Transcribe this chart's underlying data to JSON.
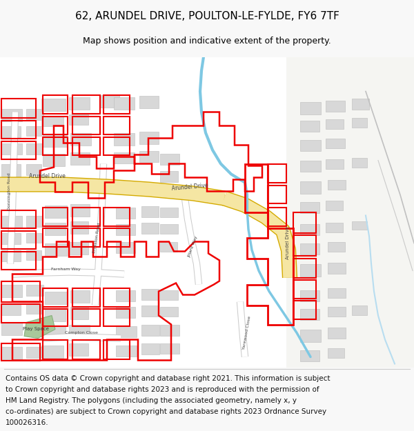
{
  "title": "62, ARUNDEL DRIVE, POULTON-LE-FYLDE, FY6 7TF",
  "subtitle": "Map shows position and indicative extent of the property.",
  "footer_lines": [
    "Contains OS data © Crown copyright and database right 2021. This information is subject",
    "to Crown copyright and database rights 2023 and is reproduced with the permission of",
    "HM Land Registry. The polygons (including the associated geometry, namely x, y",
    "co-ordinates) are subject to Crown copyright and database rights 2023 Ordnance Survey",
    "100026316."
  ],
  "bg_color": "#f8f8f8",
  "map_bg": "#ffffff",
  "road_yellow": "#f5e6a3",
  "road_yellow_border": "#d4aa00",
  "road_white": "#ffffff",
  "road_gray_border": "#cccccc",
  "building_fill": "#d8d8d8",
  "building_stroke": "#bbbbbb",
  "red_color": "#ee0000",
  "blue_water": "#7ec8e3",
  "blue_water_light": "#b8ddf0",
  "green_space": "#a8c89a",
  "gray_line": "#c8c8c8",
  "title_fontsize": 11,
  "subtitle_fontsize": 9,
  "footer_fontsize": 7.5,
  "label_fontsize": 5.0,
  "road_label_fontsize": 5.5
}
